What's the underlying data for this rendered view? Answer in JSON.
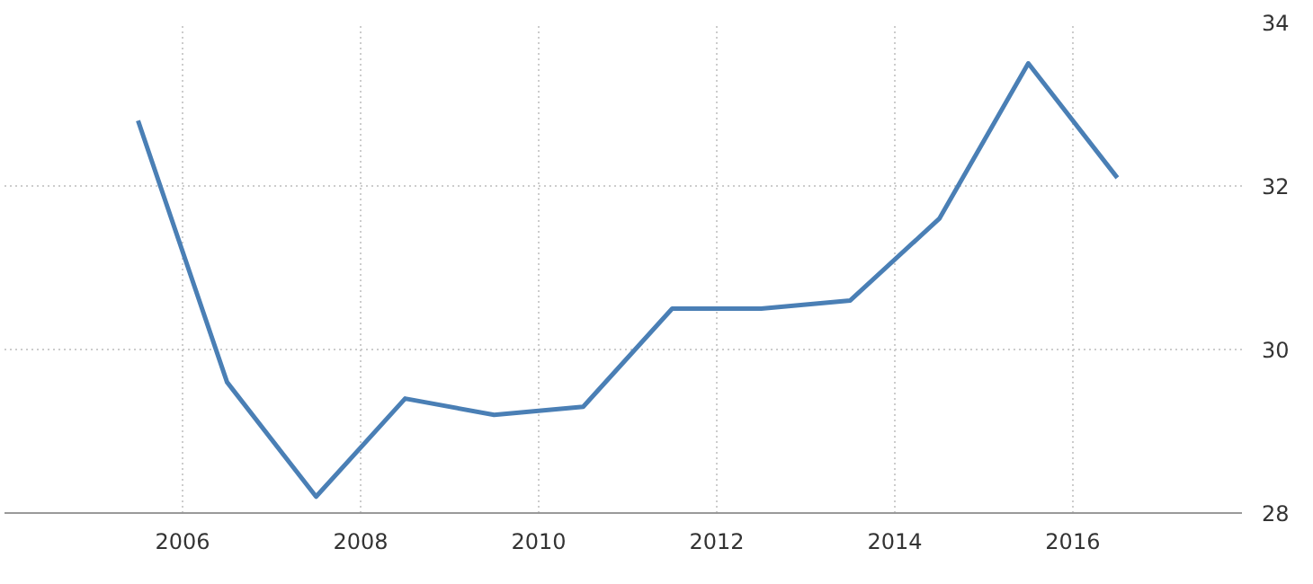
{
  "chart_data": {
    "type": "line",
    "x": [
      2005.5,
      2006.5,
      2007.5,
      2008.5,
      2009.5,
      2010.5,
      2011.5,
      2012.5,
      2013.5,
      2014.5,
      2015.5,
      2016.5
    ],
    "series": [
      {
        "color": "#4a7fb5",
        "values": [
          32.8,
          29.6,
          28.2,
          29.4,
          29.2,
          29.3,
          30.5,
          30.5,
          30.6,
          31.6,
          33.5,
          32.1
        ]
      }
    ],
    "xlim": [
      2004,
      2017.9
    ],
    "xticks": [
      2006,
      2008,
      2010,
      2012,
      2014,
      2016
    ],
    "ylim": [
      28,
      34
    ],
    "yticks": [
      28,
      30,
      32,
      34
    ],
    "grid": true,
    "marker": "none",
    "line_style": "solid"
  }
}
